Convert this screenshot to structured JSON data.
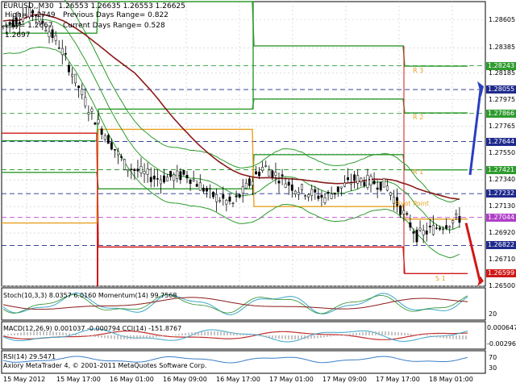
{
  "header": {
    "symbol_line": "EURUSD,,M30  1.26553 1.26635 1.26553 1.26625",
    "high_line": "High= 1.2749",
    "prev_range": "Previous Days Range= 0.822",
    "low_line": "Low= 1.2667",
    "curr_range": "Current Days Range= 0.528",
    "extra_line": "1.2697"
  },
  "price_axis": {
    "labels": [
      "1.28605",
      "1.28385",
      "1.28185",
      "1.27975",
      "1.27765",
      "1.27550",
      "1.27340",
      "1.27130",
      "1.26920",
      "1.26710",
      "1.26500"
    ],
    "boxes": [
      {
        "value": "1.28243",
        "color": "#2e9b2e"
      },
      {
        "value": "1.28055",
        "color": "#1f2a8c"
      },
      {
        "value": "1.27866",
        "color": "#2e9b2e"
      },
      {
        "value": "1.27644",
        "color": "#1f2a8c"
      },
      {
        "value": "1.27421",
        "color": "#2e9b2e"
      },
      {
        "value": "1.27232",
        "color": "#1f2a8c"
      },
      {
        "value": "1.27044",
        "color": "#b040c8"
      },
      {
        "value": "1.26822",
        "color": "#1f2a8c"
      },
      {
        "value": "1.26599",
        "color": "#d01818"
      }
    ]
  },
  "pivot_labels": {
    "r3": "R 3",
    "r2": "R 2",
    "r1": "R 1",
    "pivot": "Pivot Point",
    "s1": "S 1"
  },
  "stoch": {
    "label": "Stoch(10,3,3) 8.0357 6.0160  Momentum(14) 99.7568",
    "scale_top": "",
    "scale_bottom": "20"
  },
  "macd": {
    "label": "MACD(12,26,9) 0.001037 -0.000794  CCI(14) -151.8767",
    "scale_top": "0.000647",
    "scale_bottom": "-0.00296"
  },
  "rsi": {
    "label": "RSI(14) 29.5471",
    "scale_top": "70",
    "scale_bottom": "30",
    "copyright": "Axiory MetaTrader 4, © 2001-2011 MetaQuotes Software Corp."
  },
  "time_axis": [
    "15 May 2012",
    "15 May 17:00",
    "16 May 01:00",
    "16 May 09:00",
    "16 May 17:00",
    "17 May 01:00",
    "17 May 09:00",
    "17 May 17:00",
    "18 May 01:00"
  ],
  "colors": {
    "candle": "#000000",
    "bollinger": "#2e9b2e",
    "ma": "#8b1a1a",
    "pivot_orange": "#e8a020",
    "resistance": "#2e9b2e",
    "support": "#d01818",
    "dashed_blue": "#1f2a8c",
    "pivot_magenta": "#c040d0"
  }
}
